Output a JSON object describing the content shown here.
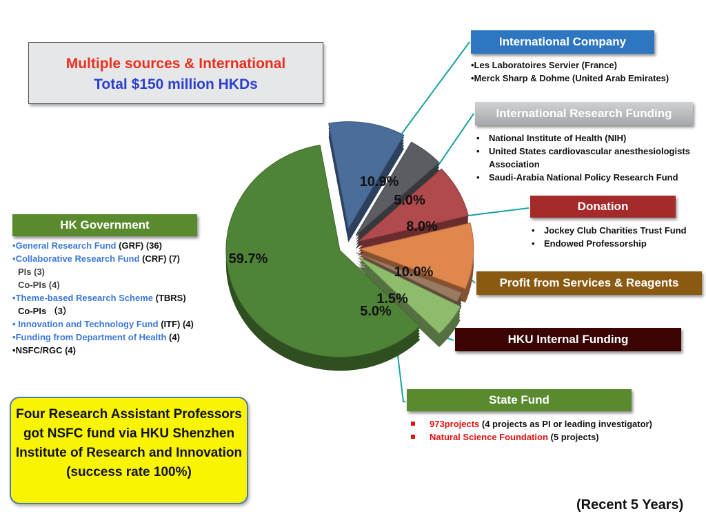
{
  "title": {
    "line1": "Multiple sources & International",
    "line2": "Total $150 million HKDs"
  },
  "chart_data": {
    "type": "pie",
    "slices": [
      {
        "label": "International Company",
        "value": 10.9,
        "display": "10.9%",
        "color": "#4a6d9a"
      },
      {
        "label": "International Research Funding",
        "value": 5.0,
        "display": "5.0%",
        "color": "#5a5d62"
      },
      {
        "label": "Donation",
        "value": 8.0,
        "display": "8.0%",
        "color": "#b04a4c"
      },
      {
        "label": "Profit from Services & Reagents",
        "value": 10.0,
        "display": "10.0%",
        "color": "#e0874e"
      },
      {
        "label": "HKU Internal Funding",
        "value": 1.5,
        "display": "1.5%",
        "color": "#9b7a62"
      },
      {
        "label": "State Fund",
        "value": 5.0,
        "display": "5.0%",
        "color": "#8dbd6c"
      },
      {
        "label": "HK Government",
        "value": 59.7,
        "display": "59.7%",
        "color": "#4f8337"
      }
    ]
  },
  "categories": {
    "intl_company": {
      "label": "International Company",
      "items": [
        "•Les Laboratoires Servier (France)",
        "•Merck Sharp & Dohme (United Arab Emirates)"
      ]
    },
    "intl_research": {
      "label": "International Research Funding",
      "items": [
        "National Institute of Health (NIH)",
        "United States cardiovascular anesthesiologists Association",
        "Saudi-Arabia National Policy Research Fund"
      ]
    },
    "donation": {
      "label": "Donation",
      "items": [
        "Jockey Club Charities Trust Fund",
        "Endowed Professorship"
      ]
    },
    "profit": {
      "label": "Profit from Services & Reagents"
    },
    "hku_internal": {
      "label": "HKU Internal Funding"
    },
    "state_fund": {
      "label": "State Fund",
      "items": [
        {
          "name": "973projects",
          "detail": " (4  projects as PI or  leading investigator)"
        },
        {
          "name": "Natural Science Foundation",
          "detail": " (5 projects)"
        }
      ]
    },
    "hk_gov": {
      "label": "HK Government",
      "grf_name": "General Research Fund",
      "grf_detail": " (GRF) (36)",
      "crf_name": "Collaborative Research Fund",
      "crf_detail": " (CRF) (7)",
      "crf_pis": "PIs (3)",
      "crf_copis": "Co-PIs (4)",
      "tbrs_name": "Theme-based Research Scheme",
      "tbrs_detail": " (TBRS)",
      "tbrs_copis": "Co-PIs （3）",
      "itf_name": " Innovation and Technology Fund",
      "itf_detail": " (ITF) (4)",
      "doh_name": "Funding from Department of Health",
      "doh_detail": " (4)",
      "nsfc": "NSFC/RGC (4)"
    }
  },
  "nsfc_note": "Four Research Assistant Professors got NSFC fund via HKU Shenzhen Institute of Research and Innovation (success rate 100%)",
  "footer_note": "(Recent 5 Years)"
}
